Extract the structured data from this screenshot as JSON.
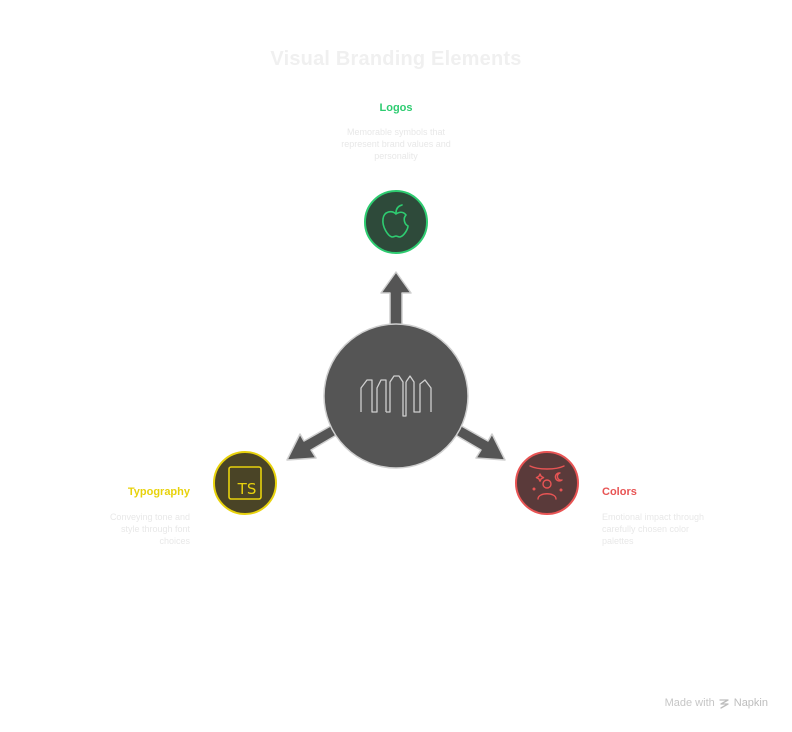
{
  "title": "Visual Branding Elements",
  "nodes": {
    "logos": {
      "title": "Logos",
      "description": "Memorable symbols that represent brand values and personality",
      "color": "#2ecc71",
      "fill": "#2e4a3a",
      "icon": "apple-icon"
    },
    "typography": {
      "title": "Typography",
      "description": "Conveying tone and style through font choices",
      "color": "#e8d20c",
      "fill": "#4a4426",
      "icon": "typescript-icon"
    },
    "colors": {
      "title": "Colors",
      "description": "Emotional impact through carefully chosen color palettes",
      "color": "#e85454",
      "fill": "#5a3a3a",
      "icon": "mood-icon"
    }
  },
  "center": {
    "icon": "waveform-icon",
    "fill": "#555555"
  },
  "footer": {
    "made_with": "Made with",
    "brand": "Napkin"
  }
}
